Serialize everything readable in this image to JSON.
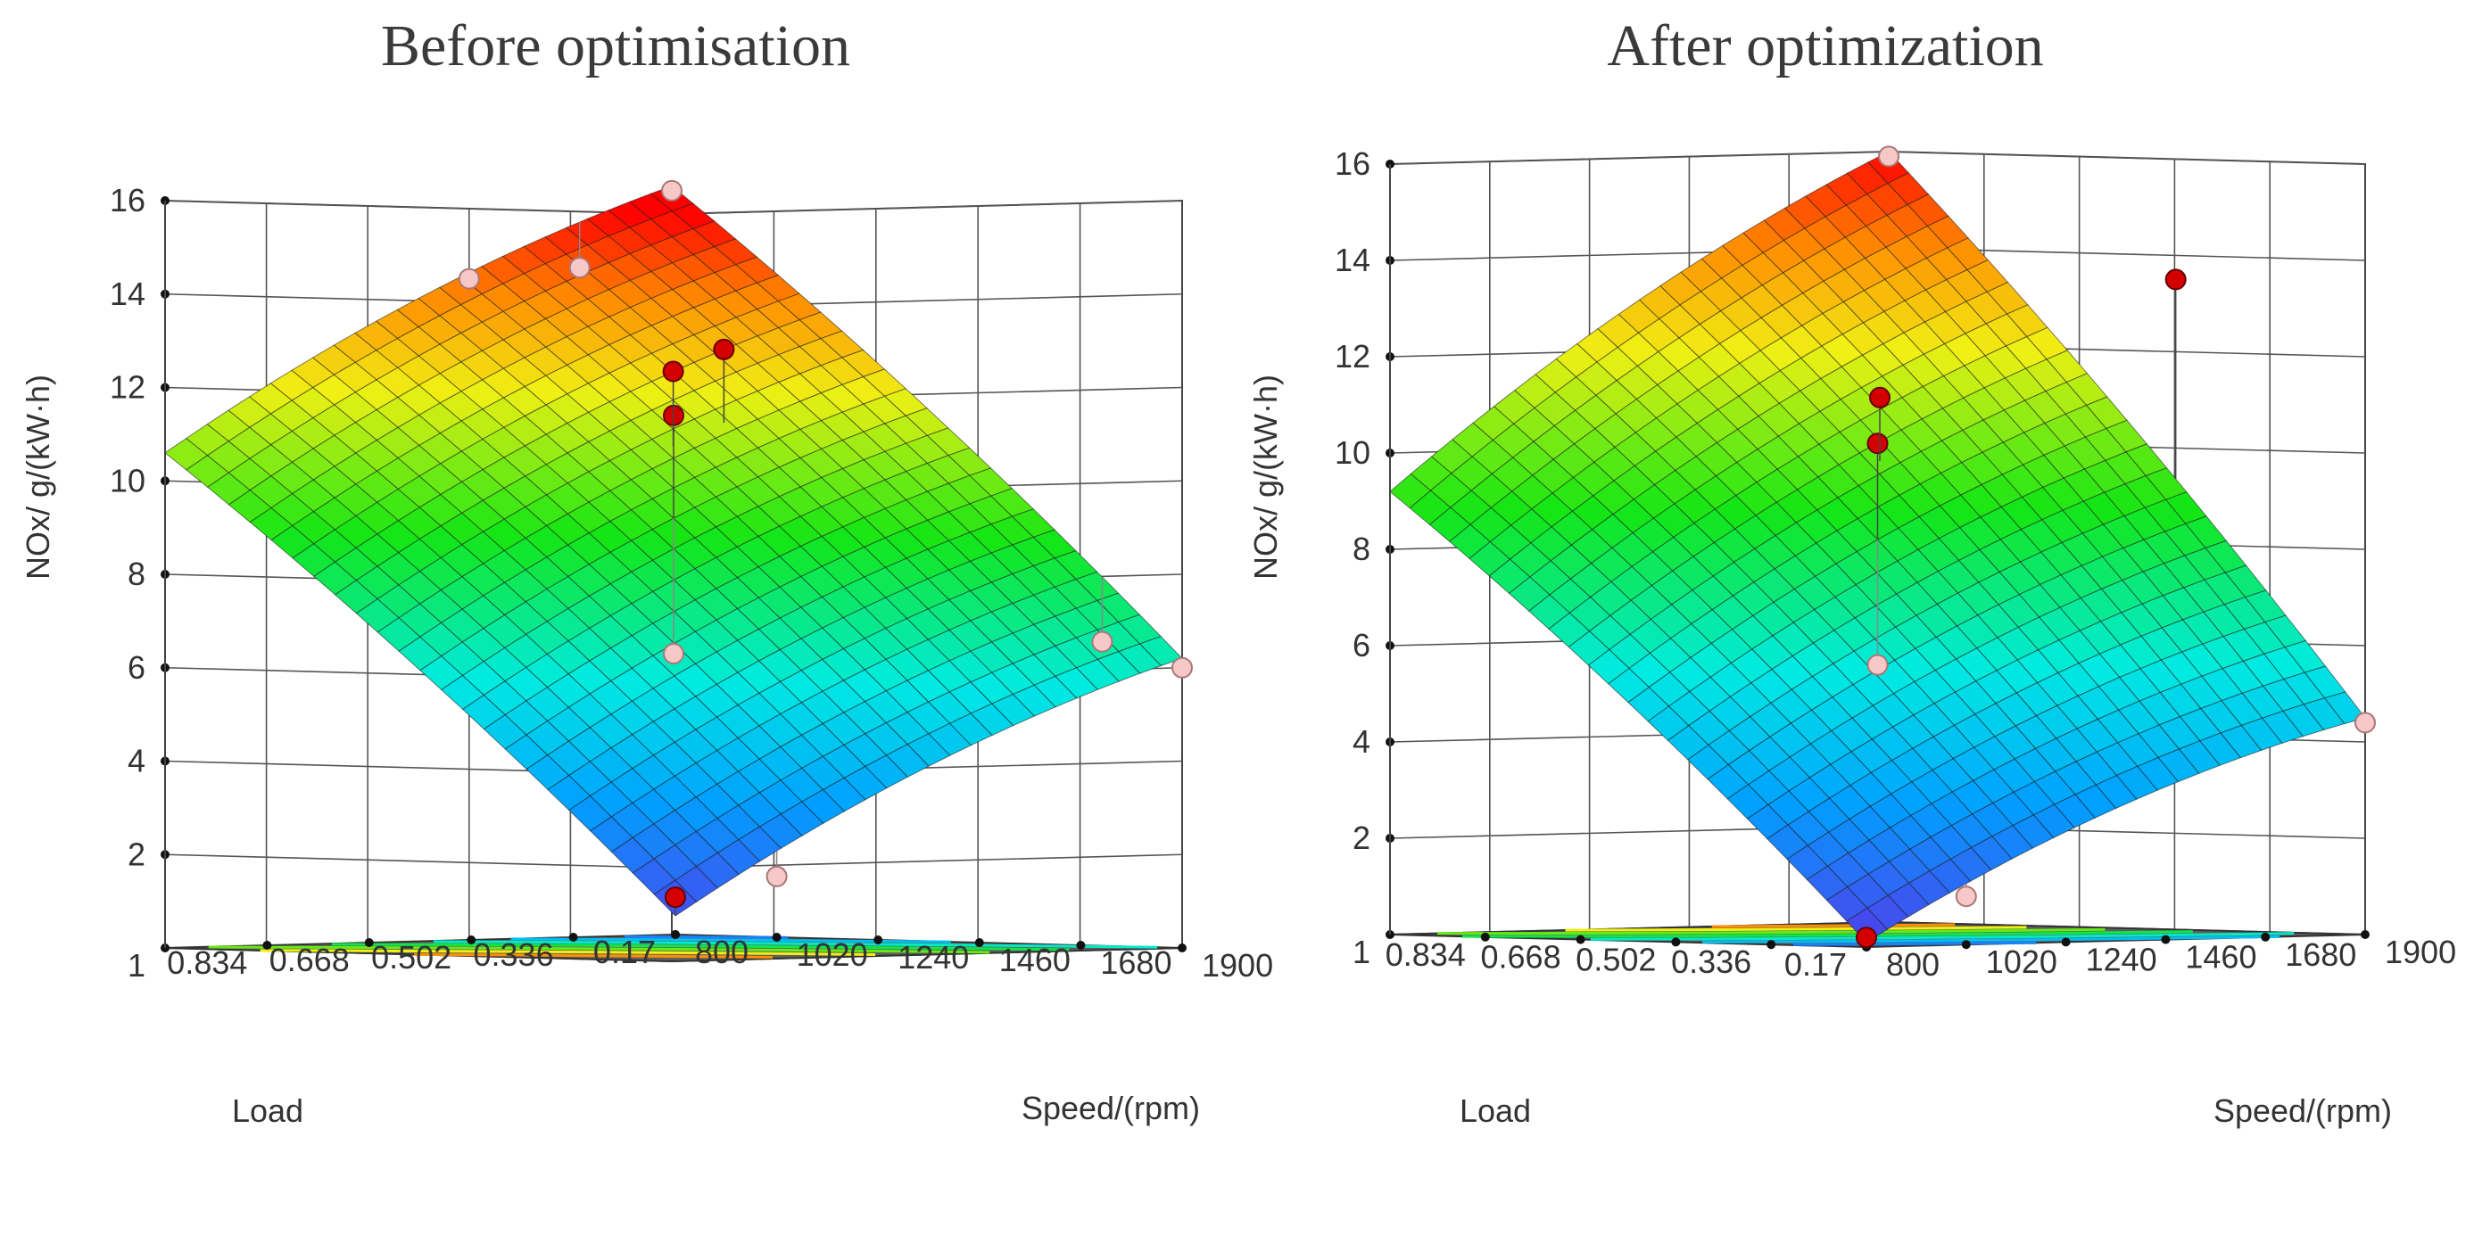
{
  "chart_data": [
    {
      "type": "surface3d",
      "title": "Before optimisation",
      "zlabel": "NOx/ g/(kW·h)",
      "xlabel": "Speed/(rpm)",
      "ylabel": "Load",
      "z_ticks": [
        "16",
        "14",
        "12",
        "10",
        "8",
        "6",
        "4",
        "2"
      ],
      "x_ticks": [
        "800",
        "1020",
        "1240",
        "1460",
        "1680",
        "1900"
      ],
      "y_ticks": [
        "0.17",
        "0.336",
        "0.502",
        "0.668",
        "0.834",
        "1"
      ],
      "xlim": [
        800,
        1900
      ],
      "ylim": [
        0.17,
        1
      ],
      "zlim": [
        0,
        16
      ],
      "surface_corners": {
        "speed_800_load_0.17": 0.4,
        "speed_800_load_1": 10.6,
        "speed_1900_load_0.17": 6.2,
        "speed_1900_load_1": 16.6
      },
      "design_points": [
        {
          "speed": 800,
          "load": 0.17,
          "nox": 0.8
        },
        {
          "speed": 1020,
          "load": 0.17,
          "nox": 1.3
        },
        {
          "speed": 1900,
          "load": 0.17,
          "nox": 6.0
        },
        {
          "speed": 1900,
          "load": 0.3,
          "nox": 6.6
        },
        {
          "speed": 1350,
          "load": 0.585,
          "nox": 6.3
        },
        {
          "speed": 1350,
          "load": 0.585,
          "nox": 11.4
        },
        {
          "speed": 1460,
          "load": 0.668,
          "nox": 12.4
        },
        {
          "speed": 1570,
          "load": 0.668,
          "nox": 12.9
        },
        {
          "speed": 1700,
          "load": 1,
          "nox": 14.8
        },
        {
          "speed": 1900,
          "load": 1,
          "nox": 16.5
        },
        {
          "speed": 1460,
          "load": 1,
          "nox": 14.5
        }
      ]
    },
    {
      "type": "surface3d",
      "title": "After optimization",
      "zlabel": "NOx/ g/(kW·h)",
      "xlabel": "Speed/(rpm)",
      "ylabel": "Load",
      "z_ticks": [
        "16",
        "14",
        "12",
        "10",
        "8",
        "6",
        "4",
        "2"
      ],
      "x_ticks": [
        "800",
        "1020",
        "1240",
        "1460",
        "1680",
        "1900"
      ],
      "y_ticks": [
        "0.17",
        "0.336",
        "0.502",
        "0.668",
        "0.834",
        "1"
      ],
      "xlim": [
        800,
        1900
      ],
      "ylim": [
        0.17,
        1
      ],
      "zlim": [
        0,
        16
      ],
      "surface_corners": {
        "speed_800_load_0.17": 0.1,
        "speed_800_load_1": 9.2,
        "speed_1900_load_0.17": 4.5,
        "speed_1900_load_1": 16.0
      },
      "design_points": [
        {
          "speed": 800,
          "load": 0.17,
          "nox": 0.2
        },
        {
          "speed": 1020,
          "load": 0.17,
          "nox": 1.0
        },
        {
          "speed": 1900,
          "load": 0.17,
          "nox": 4.4
        },
        {
          "speed": 1350,
          "load": 0.585,
          "nox": 5.6
        },
        {
          "speed": 1350,
          "load": 0.585,
          "nox": 10.2
        },
        {
          "speed": 1460,
          "load": 0.668,
          "nox": 11.1
        },
        {
          "speed": 1900,
          "load": 0.5,
          "nox": 13.5
        },
        {
          "speed": 1900,
          "load": 1,
          "nox": 15.9
        }
      ]
    }
  ]
}
